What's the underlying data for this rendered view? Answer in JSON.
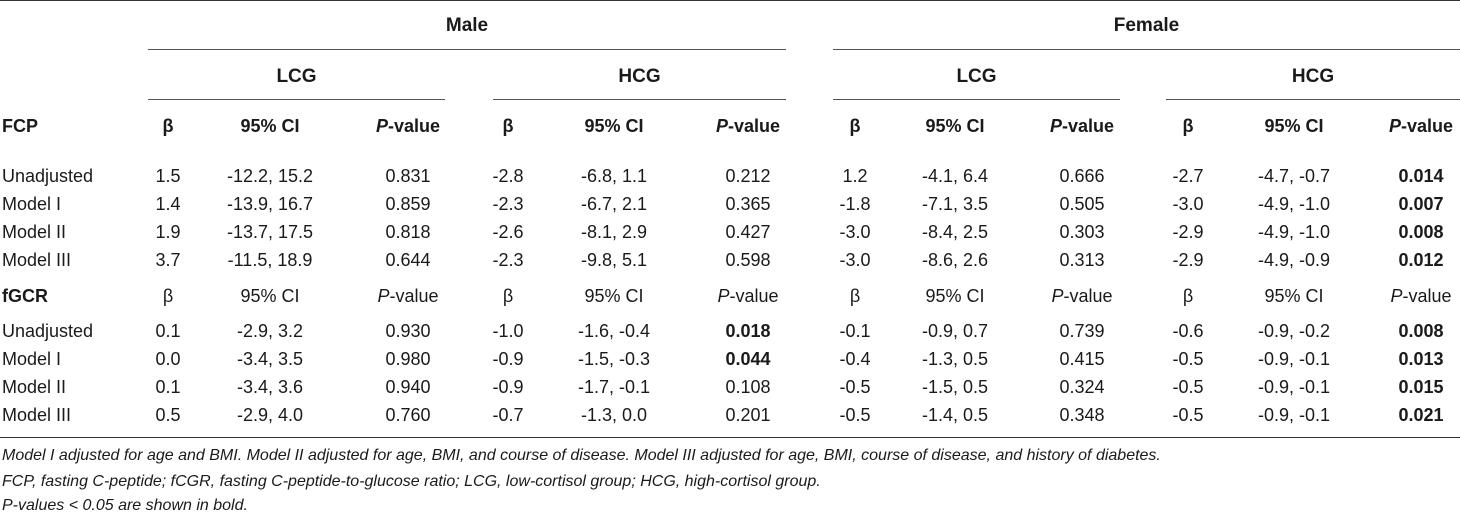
{
  "groups": {
    "male": "Male",
    "female": "Female",
    "lcg": "LCG",
    "hcg": "HCG"
  },
  "header": {
    "fcp_label": "FCP",
    "beta": "β",
    "ci": "95% CI",
    "p_italic": "P",
    "p_rest": "-value"
  },
  "fcp_rows": [
    {
      "label": "Unadjusted",
      "cells": [
        "1.5",
        "-12.2, 15.2",
        "0.831",
        "-2.8",
        "-6.8, 1.1",
        "0.212",
        "1.2",
        "-4.1, 6.4",
        "0.666",
        "-2.7",
        "-4.7, -0.7",
        "0.014"
      ],
      "bold": [
        11
      ]
    },
    {
      "label": "Model I",
      "cells": [
        "1.4",
        "-13.9, 16.7",
        "0.859",
        "-2.3",
        "-6.7, 2.1",
        "0.365",
        "-1.8",
        "-7.1, 3.5",
        "0.505",
        "-3.0",
        "-4.9, -1.0",
        "0.007"
      ],
      "bold": [
        11
      ]
    },
    {
      "label": "Model II",
      "cells": [
        "1.9",
        "-13.7, 17.5",
        "0.818",
        "-2.6",
        "-8.1, 2.9",
        "0.427",
        "-3.0",
        "-8.4, 2.5",
        "0.303",
        "-2.9",
        "-4.9, -1.0",
        "0.008"
      ],
      "bold": [
        11
      ]
    },
    {
      "label": "Model III",
      "cells": [
        "3.7",
        "-11.5, 18.9",
        "0.644",
        "-2.3",
        "-9.8, 5.1",
        "0.598",
        "-3.0",
        "-8.6, 2.6",
        "0.313",
        "-2.9",
        "-4.9, -0.9",
        "0.012"
      ],
      "bold": [
        11
      ]
    }
  ],
  "fgcr_label": "fGCR",
  "fgcr_rows": [
    {
      "label": "Unadjusted",
      "cells": [
        "0.1",
        "-2.9, 3.2",
        "0.930",
        "-1.0",
        "-1.6, -0.4",
        "0.018",
        "-0.1",
        "-0.9, 0.7",
        "0.739",
        "-0.6",
        "-0.9, -0.2",
        "0.008"
      ],
      "bold": [
        5,
        11
      ]
    },
    {
      "label": "Model I",
      "cells": [
        "0.0",
        "-3.4, 3.5",
        "0.980",
        "-0.9",
        "-1.5, -0.3",
        "0.044",
        "-0.4",
        "-1.3, 0.5",
        "0.415",
        "-0.5",
        "-0.9, -0.1",
        "0.013"
      ],
      "bold": [
        5,
        11
      ]
    },
    {
      "label": "Model II",
      "cells": [
        "0.1",
        "-3.4, 3.6",
        "0.940",
        "-0.9",
        "-1.7, -0.1",
        "0.108",
        "-0.5",
        "-1.5, 0.5",
        "0.324",
        "-0.5",
        "-0.9, -0.1",
        "0.015"
      ],
      "bold": [
        11
      ]
    },
    {
      "label": "Model III",
      "cells": [
        "0.5",
        "-2.9, 4.0",
        "0.760",
        "-0.7",
        "-1.3, 0.0",
        "0.201",
        "-0.5",
        "-1.4, 0.5",
        "0.348",
        "-0.5",
        "-0.9, -0.1",
        "0.021"
      ],
      "bold": [
        11
      ]
    }
  ],
  "footnotes": [
    "Model I adjusted for age and BMI. Model II adjusted for age, BMI, and course of disease. Model III adjusted for age, BMI, course of disease, and history of diabetes.",
    "FCP, fasting C-peptide; fCGR, fasting C-peptide-to-glucose ratio; LCG, low-cortisol group; HCG, high-cortisol group.",
    "P-values < 0.05 are shown in bold."
  ]
}
